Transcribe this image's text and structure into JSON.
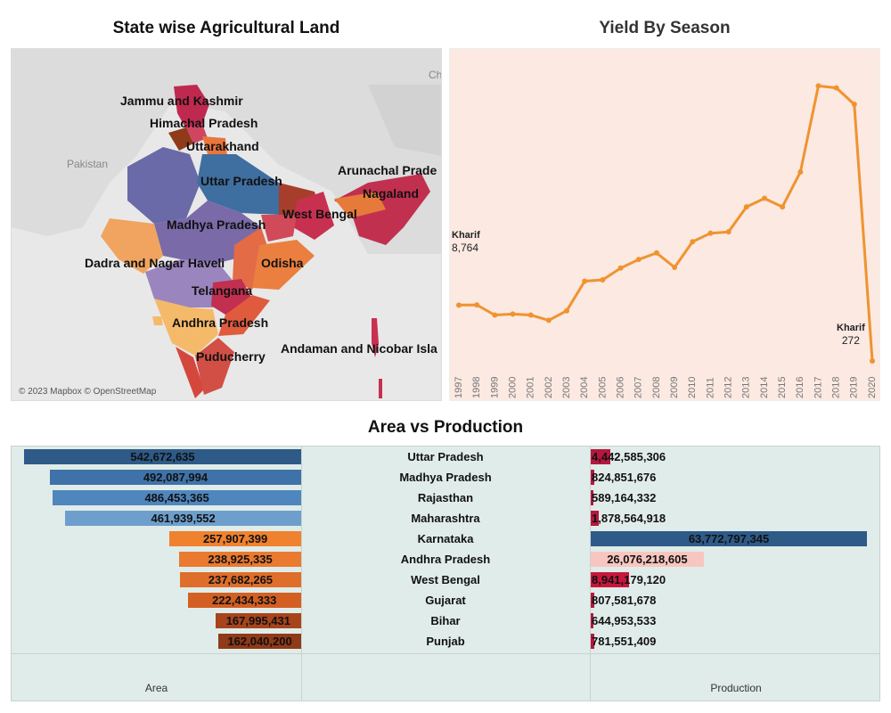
{
  "titles": {
    "map": "State wise Agricultural Land",
    "line": "Yield By Season",
    "bars": "Area vs Production"
  },
  "map": {
    "attribution": "© 2023 Mapbox © OpenStreetMap",
    "region_labels": [
      "Pakistan",
      "Ch"
    ],
    "state_labels": [
      "Jammu and Kashmir",
      "Himachal Pradesh",
      "Uttarakhand",
      "Uttar Pradesh",
      "Arunachal Prade",
      "Nagaland",
      "West Bengal",
      "Madhya Pradesh",
      "Dadra and Nagar Haveli",
      "Odisha",
      "Telangana",
      "Andhra Pradesh",
      "Puducherry",
      "Andaman and Nicobar Isla"
    ]
  },
  "chart_data": [
    {
      "type": "line",
      "title": "Yield By Season",
      "x": [
        "1997",
        "1998",
        "1999",
        "2000",
        "2001",
        "2002",
        "2003",
        "2004",
        "2005",
        "2006",
        "2007",
        "2008",
        "2009",
        "2010",
        "2011",
        "2012",
        "2013",
        "2014",
        "2015",
        "2016",
        "2017",
        "2018",
        "2019",
        "2020"
      ],
      "series": [
        {
          "name": "Kharif",
          "values": [
            8764,
            8800,
            7250,
            7400,
            7250,
            6450,
            7900,
            12400,
            12600,
            14400,
            15700,
            16700,
            14500,
            18400,
            19700,
            19900,
            23700,
            25000,
            23700,
            29000,
            42100,
            41800,
            39300,
            272
          ]
        }
      ],
      "annotations": [
        {
          "label": "Kharif",
          "value": "8,764",
          "year": "1997"
        },
        {
          "label": "Kharif",
          "value": "272",
          "year": "2020"
        }
      ],
      "color": "#f0932f",
      "ylim": [
        0,
        45000
      ]
    },
    {
      "type": "bar",
      "title": "Area vs Production",
      "categories": [
        "Uttar Pradesh",
        "Madhya Pradesh",
        "Rajasthan",
        "Maharashtra",
        "Karnataka",
        "Andhra Pradesh",
        "West Bengal",
        "Gujarat",
        "Bihar",
        "Punjab"
      ],
      "series": [
        {
          "name": "Area",
          "values": [
            542672635,
            492087994,
            486453365,
            461939552,
            257907399,
            238925335,
            237682265,
            222434333,
            167995431,
            162040200
          ],
          "labels": [
            "542,672,635",
            "492,087,994",
            "486,453,365",
            "461,939,552",
            "257,907,399",
            "238,925,335",
            "237,682,265",
            "222,434,333",
            "167,995,431",
            "162,040,200"
          ],
          "colors": [
            "#2e5a88",
            "#3f72a8",
            "#4f86bd",
            "#6e9fcc",
            "#f0812e",
            "#e97a30",
            "#df6e2a",
            "#d35f23",
            "#a7441c",
            "#8f3a18"
          ]
        },
        {
          "name": "Production",
          "values": [
            4442585306,
            824851676,
            589164332,
            1878564918,
            63772797345,
            26076218605,
            8941179120,
            807581678,
            644953533,
            781551409
          ],
          "labels": [
            "4,442,585,306",
            "824,851,676",
            "589,164,332",
            "1,878,564,918",
            "63,772,797,345",
            "26,076,218,605",
            "8,941,179,120",
            "807,581,678",
            "644,953,533",
            "781,551,409"
          ],
          "colors": [
            "#b5173f",
            "#b5173f",
            "#b5173f",
            "#b5173f",
            "#2e5a88",
            "#f8c6c0",
            "#c8173c",
            "#b5173f",
            "#b5173f",
            "#b5173f"
          ]
        }
      ]
    }
  ]
}
